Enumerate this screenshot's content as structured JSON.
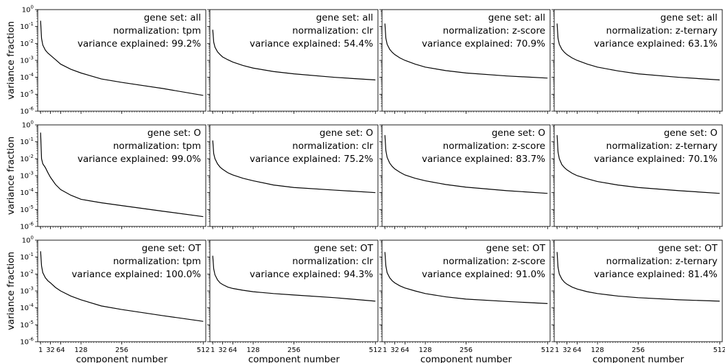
{
  "colors": {
    "line": "#000000",
    "background": "#ffffff"
  },
  "axes": {
    "ylabel": "variance fraction",
    "xlabel": "component number",
    "yscale": "log",
    "ylim": [
      1e-06,
      1
    ],
    "xlim": [
      -8,
      520
    ],
    "xticks": [
      1,
      32,
      64,
      128,
      256,
      512
    ],
    "yticks": [
      {
        "base": "10",
        "exp": "0",
        "value": 1
      },
      {
        "base": "10",
        "exp": "-1",
        "value": 0.1
      },
      {
        "base": "10",
        "exp": "-2",
        "value": 0.01
      },
      {
        "base": "10",
        "exp": "-3",
        "value": 0.001
      },
      {
        "base": "10",
        "exp": "-4",
        "value": 0.0001
      },
      {
        "base": "10",
        "exp": "-5",
        "value": 1e-05
      },
      {
        "base": "10",
        "exp": "-6",
        "value": 1e-06
      }
    ]
  },
  "chart_data": [
    {
      "type": "line",
      "gene_set_label": "gene set: all",
      "normalization_label": "normalization: tpm",
      "variance_label": "variance explained: 99.2%",
      "x": [
        1,
        4,
        8,
        16,
        24,
        32,
        48,
        64,
        96,
        128,
        192,
        256,
        384,
        512
      ],
      "y": [
        0.22,
        0.02,
        0.008,
        0.004,
        0.0027,
        0.002,
        0.0011,
        0.0006,
        0.0003,
        0.00018,
        8e-05,
        5e-05,
        2.2e-05,
        8.5e-06
      ]
    },
    {
      "type": "line",
      "gene_set_label": "gene set: all",
      "normalization_label": "normalization: clr",
      "variance_label": "variance explained: 54.4%",
      "x": [
        1,
        4,
        8,
        16,
        24,
        32,
        48,
        64,
        96,
        128,
        192,
        256,
        384,
        512
      ],
      "y": [
        0.065,
        0.012,
        0.006,
        0.0032,
        0.0022,
        0.0016,
        0.0011,
        0.0008,
        0.0005,
        0.00035,
        0.00022,
        0.00016,
        0.0001,
        7e-05
      ]
    },
    {
      "type": "line",
      "gene_set_label": "gene set: all",
      "normalization_label": "normalization: z-score",
      "variance_label": "variance explained: 70.9%",
      "x": [
        1,
        4,
        8,
        16,
        24,
        32,
        48,
        64,
        96,
        128,
        192,
        256,
        384,
        512
      ],
      "y": [
        0.15,
        0.02,
        0.009,
        0.0045,
        0.003,
        0.0022,
        0.0014,
        0.001,
        0.0006,
        0.0004,
        0.00025,
        0.00018,
        0.00012,
        9e-05
      ]
    },
    {
      "type": "line",
      "gene_set_label": "gene set: all",
      "normalization_label": "normalization: z-ternary",
      "variance_label": "variance explained: 63.1%",
      "x": [
        1,
        4,
        8,
        16,
        24,
        32,
        48,
        64,
        96,
        128,
        192,
        256,
        384,
        512
      ],
      "y": [
        0.15,
        0.02,
        0.009,
        0.0045,
        0.003,
        0.0022,
        0.0014,
        0.001,
        0.0006,
        0.0004,
        0.00024,
        0.00016,
        0.0001,
        7e-05
      ]
    },
    {
      "type": "line",
      "gene_set_label": "gene set: O",
      "normalization_label": "normalization: tpm",
      "variance_label": "variance explained: 99.0%",
      "x": [
        1,
        4,
        8,
        16,
        24,
        32,
        48,
        64,
        96,
        128,
        192,
        256,
        384,
        512
      ],
      "y": [
        0.35,
        0.01,
        0.005,
        0.003,
        0.0015,
        0.0008,
        0.0003,
        0.00015,
        7e-05,
        4e-05,
        2.5e-05,
        1.7e-05,
        8e-06,
        3.8e-06
      ]
    },
    {
      "type": "line",
      "gene_set_label": "gene set: O",
      "normalization_label": "normalization: clr",
      "variance_label": "variance explained: 75.2%",
      "x": [
        1,
        4,
        8,
        16,
        24,
        32,
        48,
        64,
        96,
        128,
        192,
        256,
        384,
        512
      ],
      "y": [
        0.12,
        0.02,
        0.01,
        0.005,
        0.0032,
        0.0024,
        0.0015,
        0.0011,
        0.0007,
        0.0005,
        0.00028,
        0.0002,
        0.00014,
        0.0001
      ]
    },
    {
      "type": "line",
      "gene_set_label": "gene set: O",
      "normalization_label": "normalization: z-score",
      "variance_label": "variance explained: 83.7%",
      "x": [
        1,
        4,
        8,
        16,
        24,
        32,
        48,
        64,
        96,
        128,
        192,
        256,
        384,
        512
      ],
      "y": [
        0.25,
        0.03,
        0.012,
        0.0055,
        0.0035,
        0.0025,
        0.0016,
        0.0011,
        0.0007,
        0.0005,
        0.0003,
        0.00021,
        0.00013,
        9e-05
      ]
    },
    {
      "type": "line",
      "gene_set_label": "gene set: O",
      "normalization_label": "normalization: z-ternary",
      "variance_label": "variance explained: 70.1%",
      "x": [
        1,
        4,
        8,
        16,
        24,
        32,
        48,
        64,
        96,
        128,
        192,
        256,
        384,
        512
      ],
      "y": [
        0.25,
        0.025,
        0.01,
        0.0045,
        0.003,
        0.0022,
        0.0014,
        0.001,
        0.00065,
        0.00045,
        0.00028,
        0.0002,
        0.00013,
        9e-05
      ]
    },
    {
      "type": "line",
      "gene_set_label": "gene set: OT",
      "normalization_label": "normalization: tpm",
      "variance_label": "variance explained: 100.0%",
      "x": [
        1,
        4,
        8,
        16,
        24,
        32,
        48,
        64,
        96,
        128,
        192,
        256,
        384,
        512
      ],
      "y": [
        0.22,
        0.03,
        0.012,
        0.006,
        0.004,
        0.003,
        0.0016,
        0.001,
        0.0005,
        0.0003,
        0.00013,
        8e-05,
        3.5e-05,
        1.6e-05
      ]
    },
    {
      "type": "line",
      "gene_set_label": "gene set: OT",
      "normalization_label": "normalization: clr",
      "variance_label": "variance explained: 94.3%",
      "x": [
        1,
        4,
        8,
        16,
        24,
        32,
        48,
        64,
        96,
        128,
        192,
        256,
        384,
        512
      ],
      "y": [
        0.12,
        0.02,
        0.009,
        0.0045,
        0.003,
        0.0024,
        0.0017,
        0.0014,
        0.0011,
        0.0009,
        0.0007,
        0.00058,
        0.0004,
        0.00025
      ]
    },
    {
      "type": "line",
      "gene_set_label": "gene set: OT",
      "normalization_label": "normalization: z-score",
      "variance_label": "variance explained: 91.0%",
      "x": [
        1,
        4,
        8,
        16,
        24,
        32,
        48,
        64,
        96,
        128,
        192,
        256,
        384,
        512
      ],
      "y": [
        0.2,
        0.03,
        0.012,
        0.006,
        0.004,
        0.003,
        0.002,
        0.0015,
        0.001,
        0.0007,
        0.00045,
        0.00033,
        0.00024,
        0.00018
      ]
    },
    {
      "type": "line",
      "gene_set_label": "gene set: OT",
      "normalization_label": "normalization: z-ternary",
      "variance_label": "variance explained: 81.4%",
      "x": [
        1,
        4,
        8,
        16,
        24,
        32,
        48,
        64,
        96,
        128,
        192,
        256,
        384,
        512
      ],
      "y": [
        0.2,
        0.025,
        0.01,
        0.005,
        0.0033,
        0.0025,
        0.0017,
        0.0013,
        0.0009,
        0.0007,
        0.0005,
        0.0004,
        0.0003,
        0.00025
      ]
    }
  ]
}
